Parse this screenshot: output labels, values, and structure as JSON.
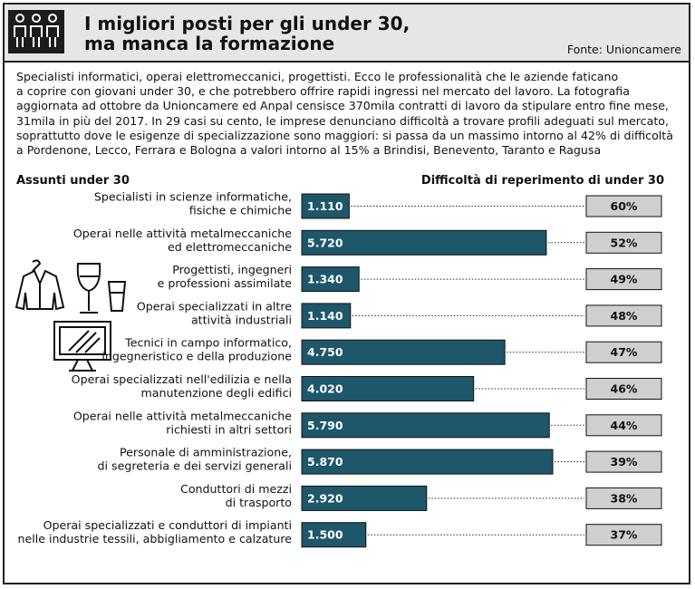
{
  "title": {
    "line1": "I migliori posti per gli under 30,",
    "line2": "ma manca la formazione"
  },
  "source": "Fonte: Unioncamere",
  "intro": [
    "Specialisti informatici, operai elettromeccanici, progettisti. Ecco le professionalità che le aziende faticano",
    "a coprire con giovani under 30, e che  potrebbero offrire rapidi ingressi nel mercato del lavoro. La fotografia",
    "aggiornata ad ottobre da Unioncamere ed Anpal censisce 370mila contratti di lavoro da stipulare entro fine mese,",
    "31mila in più del 2017. In 29 casi su cento, le imprese denunciano difficoltà a trovare profili adeguati sul mercato,",
    "soprattutto dove le esigenze di specializzazione sono maggiori: si passa da un massimo intorno al 42% di difficoltà",
    "a Pordenone, Lecco, Ferrara e Bologna a valori intorno al 15% a Brindisi, Benevento, Taranto e Ragusa"
  ],
  "colors": {
    "header_bg": "#e6e6e6",
    "bar_fill": "#1d5769",
    "pct_fill": "#cfcfcf"
  },
  "chart_data": {
    "type": "bar",
    "orientation": "horizontal",
    "left_header": "Assunti under 30",
    "right_header": "Difficoltà di reperimento di under 30",
    "xlim": [
      0,
      6000
    ],
    "categories": [
      [
        "Specialisti in scienze informatiche,",
        "fisiche e chimiche"
      ],
      [
        "Operai nelle attività metalmeccaniche",
        "ed elettromeccaniche"
      ],
      [
        "Progettisti, ingegneri",
        "e professioni assimilate"
      ],
      [
        "Operai specializzati in altre",
        "attività industriali"
      ],
      [
        "Tecnici in campo informatico,",
        "ingegneristico e della produzione"
      ],
      [
        "Operai specializzati nell'edilizia e nella",
        "manutenzione degli edifici"
      ],
      [
        "Operai nelle attività metalmeccaniche",
        "richiesti in altri settori"
      ],
      [
        "Personale di amministrazione,",
        "di segreteria e dei servizi generali"
      ],
      [
        "Conduttori di mezzi",
        "di trasporto"
      ],
      [
        "Operai specializzati e conduttori di impianti",
        "nelle industrie tessili, abbigliamento e calzature"
      ]
    ],
    "series": [
      {
        "name": "Assunti under 30",
        "values": [
          1110,
          5720,
          1340,
          1140,
          4750,
          4020,
          5790,
          5870,
          2920,
          1500
        ],
        "labels": [
          "1.110",
          "5.720",
          "1.340",
          "1.140",
          "4.750",
          "4.020",
          "5.790",
          "5.870",
          "2.920",
          "1.500"
        ]
      },
      {
        "name": "Difficoltà di reperimento di under 30",
        "values": [
          60,
          52,
          49,
          48,
          47,
          46,
          44,
          39,
          38,
          37
        ],
        "labels": [
          "60%",
          "52%",
          "49%",
          "48%",
          "47%",
          "46%",
          "44%",
          "39%",
          "38%",
          "37%"
        ]
      }
    ]
  },
  "icons": [
    "people-icon",
    "jacket-icon",
    "wine-glass-icon",
    "water-glass-icon",
    "monitor-icon"
  ]
}
